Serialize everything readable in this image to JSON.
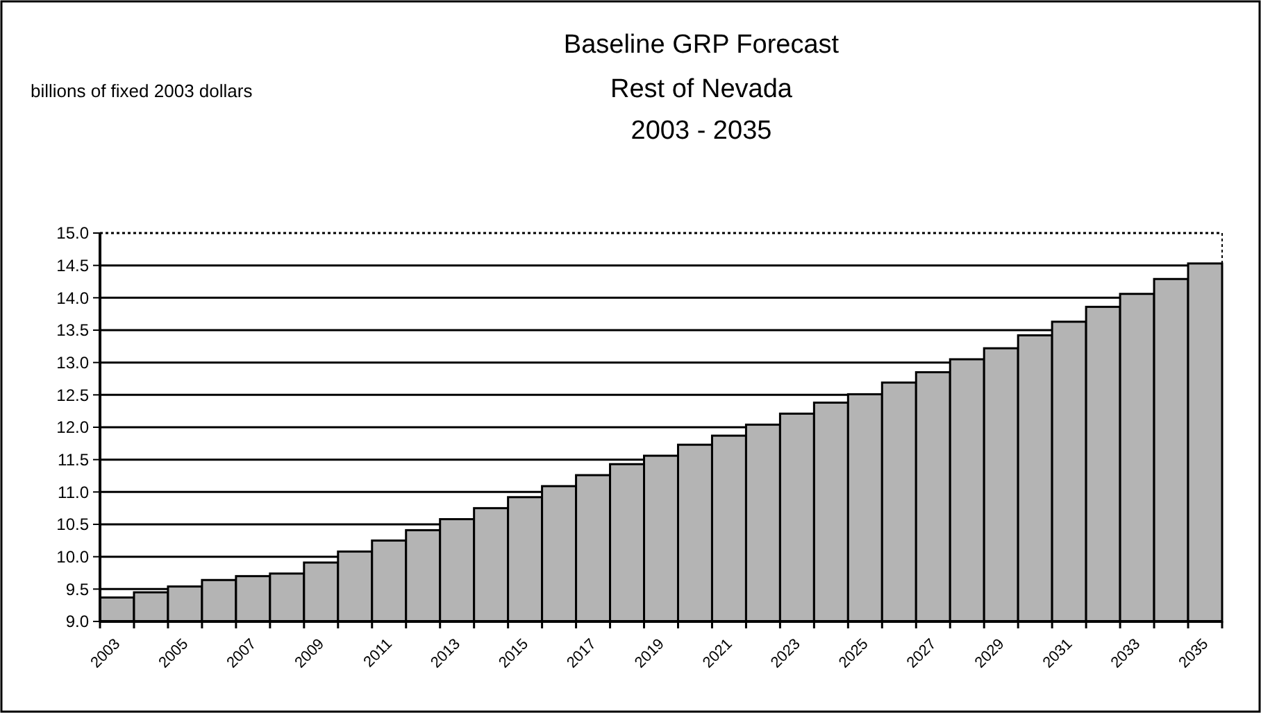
{
  "chart_data": {
    "type": "bar",
    "title": "Baseline GRP Forecast",
    "subtitle": "Rest of Nevada\n2003 - 2035",
    "annotations": [
      "billions of fixed 2003 dollars"
    ],
    "categories": [
      "2003",
      null,
      "2005",
      null,
      "2007",
      null,
      "2009",
      null,
      "2011",
      null,
      "2013",
      null,
      "2015",
      null,
      "2017",
      null,
      "2019",
      null,
      "2021",
      null,
      "2023",
      null,
      "2025",
      null,
      "2027",
      null,
      "2029",
      null,
      "2031",
      null,
      "2033",
      null,
      "2035"
    ],
    "values": [
      9.37,
      9.45,
      9.54,
      9.64,
      9.7,
      9.74,
      9.91,
      10.08,
      10.25,
      10.41,
      10.58,
      10.75,
      10.92,
      11.09,
      11.26,
      11.43,
      11.56,
      11.73,
      11.87,
      12.04,
      12.21,
      12.38,
      12.51,
      12.69,
      12.85,
      13.05,
      13.22,
      13.42,
      13.63,
      13.86,
      14.06,
      14.29,
      14.53
    ],
    "color": "#b4b4b4",
    "ylim": [
      9,
      15
    ],
    "yticks": [
      {
        "value": 9,
        "label": "9.0"
      },
      {
        "value": 9.5,
        "label": "9.5"
      },
      {
        "value": 10,
        "label": "10.0"
      },
      {
        "value": 10.5,
        "label": "10.5"
      },
      {
        "value": 11,
        "label": "11.0"
      },
      {
        "value": 11.5,
        "label": "11.5"
      },
      {
        "value": 12,
        "label": "12.0"
      },
      {
        "value": 12.5,
        "label": "12.5"
      },
      {
        "value": 13,
        "label": "13.0"
      },
      {
        "value": 13.5,
        "label": "13.5"
      },
      {
        "value": 14,
        "label": "14.0"
      },
      {
        "value": 14.5,
        "label": "14.5"
      },
      {
        "value": 15,
        "label": "15.0"
      }
    ],
    "grid": "y"
  }
}
